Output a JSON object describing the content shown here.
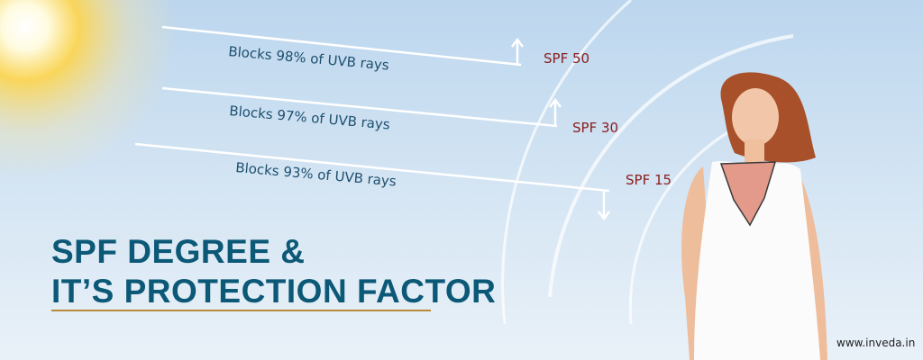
{
  "header": {
    "title_lines": [
      "SPF DEGREE &",
      "IT’S PROTECTION FACTOR"
    ]
  },
  "rays": [
    {
      "label": "Blocks 98% of UVB rays",
      "spf": "SPF 50"
    },
    {
      "label": "Blocks 97% of UVB rays",
      "spf": "SPF 30"
    },
    {
      "label": "Blocks 93% of UVB rays",
      "spf": "SPF 15"
    }
  ],
  "footer": {
    "website": "www.inveda.in"
  }
}
